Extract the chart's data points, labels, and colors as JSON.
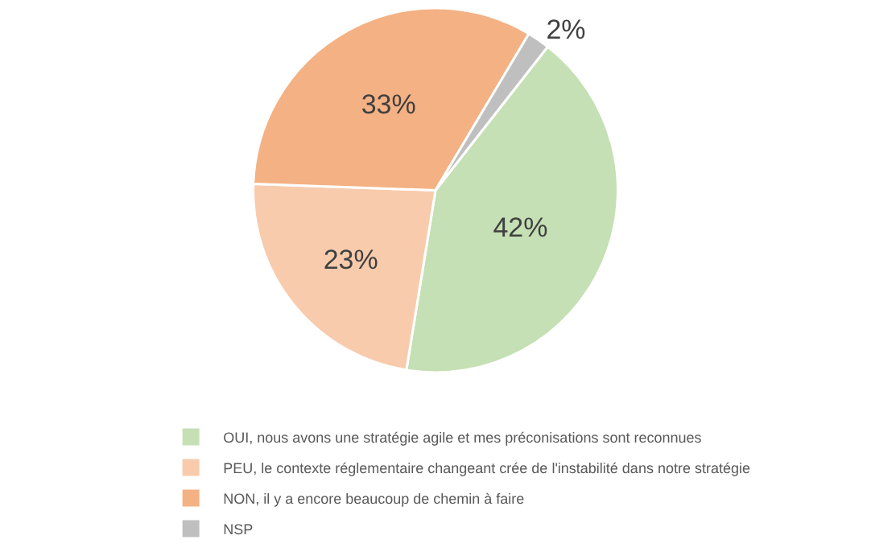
{
  "chart_data": {
    "type": "pie",
    "categories": [
      "OUI, nous avons une stratégie agile et mes préconisations sont reconnues",
      "PEU, le contexte réglementaire changeant crée de l'instabilité dans notre stratégie",
      "NON, il y a encore beaucoup de chemin à faire",
      "NSP"
    ],
    "values": [
      42,
      23,
      33,
      2
    ],
    "colors": [
      "#c5e0b4",
      "#f8cbad",
      "#f4b183",
      "#bfbfbf"
    ],
    "value_labels": [
      "42%",
      "23%",
      "33%",
      "2%"
    ],
    "legend": "bottom"
  }
}
